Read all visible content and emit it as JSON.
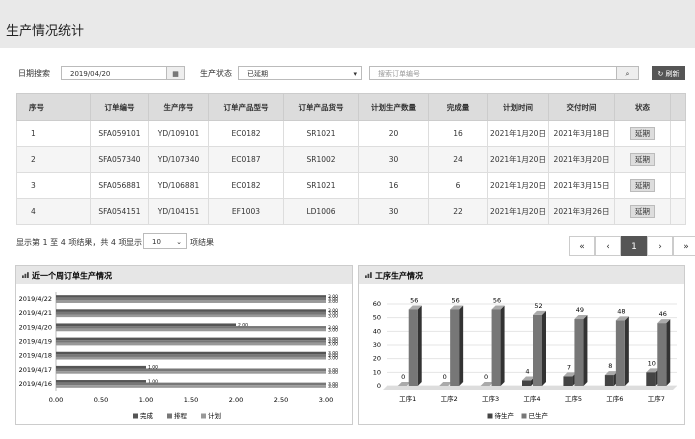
{
  "header": {
    "title": "生产情况统计"
  },
  "filters": {
    "date_label": "日期搜索",
    "date_value": "2019/04/20",
    "status_label": "生产状态",
    "status_value": "已延期",
    "search_placeholder": "搜索订单编号",
    "refresh": "刷新"
  },
  "table": {
    "columns": [
      "序号",
      "订单编号",
      "生产序号",
      "订单产品型号",
      "订单产品货号",
      "计划生产数量",
      "完成量",
      "计划时间",
      "交付时间",
      "状态"
    ],
    "rows": [
      [
        1,
        "SFA059101",
        "YD/109101",
        "EC0182",
        "SR1021",
        20,
        16,
        "2021年1月20日",
        "2021年3月18日",
        "延期"
      ],
      [
        2,
        "SFA057340",
        "YD/107340",
        "EC0187",
        "SR1002",
        30,
        24,
        "2021年1月20日",
        "2021年3月20日",
        "延期"
      ],
      [
        3,
        "SFA056881",
        "YD/106881",
        "EC0182",
        "SR1021",
        16,
        6,
        "2021年1月20日",
        "2021年3月15日",
        "延期"
      ],
      [
        4,
        "SFA054151",
        "YD/104151",
        "EF1003",
        "LD1006",
        30,
        22,
        "2021年1月20日",
        "2021年3月26日",
        "延期"
      ]
    ]
  },
  "pagination": {
    "summary": "显示第 1 至 4 项结果，共 4 项",
    "show": "显示",
    "page_size": "10",
    "suffix": "项结果",
    "buttons": [
      "«",
      "‹",
      "1",
      "›",
      "»"
    ]
  },
  "chart_data": [
    {
      "type": "hbar",
      "title": "近一个周订单生产情况",
      "categories": [
        "2019/4/16",
        "2019/4/17",
        "2019/4/18",
        "2019/4/19",
        "2019/4/20",
        "2019/4/21",
        "2019/4/22"
      ],
      "series": [
        {
          "name": "完成",
          "color": "#555555",
          "values": [
            1,
            1,
            3,
            3,
            2,
            3,
            3
          ],
          "value_labels": [
            "1.00",
            "1.00",
            "3.00",
            "3.00",
            "2.00",
            "3.00",
            "3.00"
          ]
        },
        {
          "name": "排程",
          "color": "#777777",
          "values": [
            3,
            3,
            3,
            3,
            3,
            3,
            3
          ],
          "value_labels": [
            "3.00",
            "3.00",
            "3.00",
            "3.00",
            "3.00",
            "3.00",
            "3.00"
          ]
        },
        {
          "name": "计划",
          "color": "#999999",
          "values": [
            3,
            3,
            3,
            3,
            3,
            3,
            3
          ],
          "value_labels": [
            "3.00",
            "3.00",
            "3.00",
            "3.00",
            "3.00",
            "3.00",
            "3.00"
          ]
        }
      ],
      "xlim": [
        0,
        3
      ],
      "xticks": [
        {
          "value": 0,
          "label": "0.00"
        },
        {
          "value": 0.5,
          "label": "0.50"
        },
        {
          "value": 1,
          "label": "1.00"
        },
        {
          "value": 1.5,
          "label": "1.50"
        },
        {
          "value": 2,
          "label": "2.00"
        },
        {
          "value": 2.5,
          "label": "2.50"
        },
        {
          "value": 3,
          "label": "3.00"
        }
      ],
      "grid": false
    },
    {
      "type": "bar3d",
      "title": "工序生产情况",
      "categories": [
        "工序1",
        "工序2",
        "工序3",
        "工序4",
        "工序5",
        "工序6",
        "工序7"
      ],
      "series": [
        {
          "name": "待生产",
          "color": "#444444",
          "values": [
            0,
            0,
            0,
            4,
            7,
            8,
            10
          ]
        },
        {
          "name": "已生产",
          "color": "#777777",
          "values": [
            56,
            56,
            56,
            52,
            49,
            48,
            46
          ]
        }
      ],
      "ylim": [
        0,
        60
      ],
      "yticks": [
        0,
        10,
        20,
        30,
        40,
        50,
        60
      ],
      "grid": true
    }
  ]
}
